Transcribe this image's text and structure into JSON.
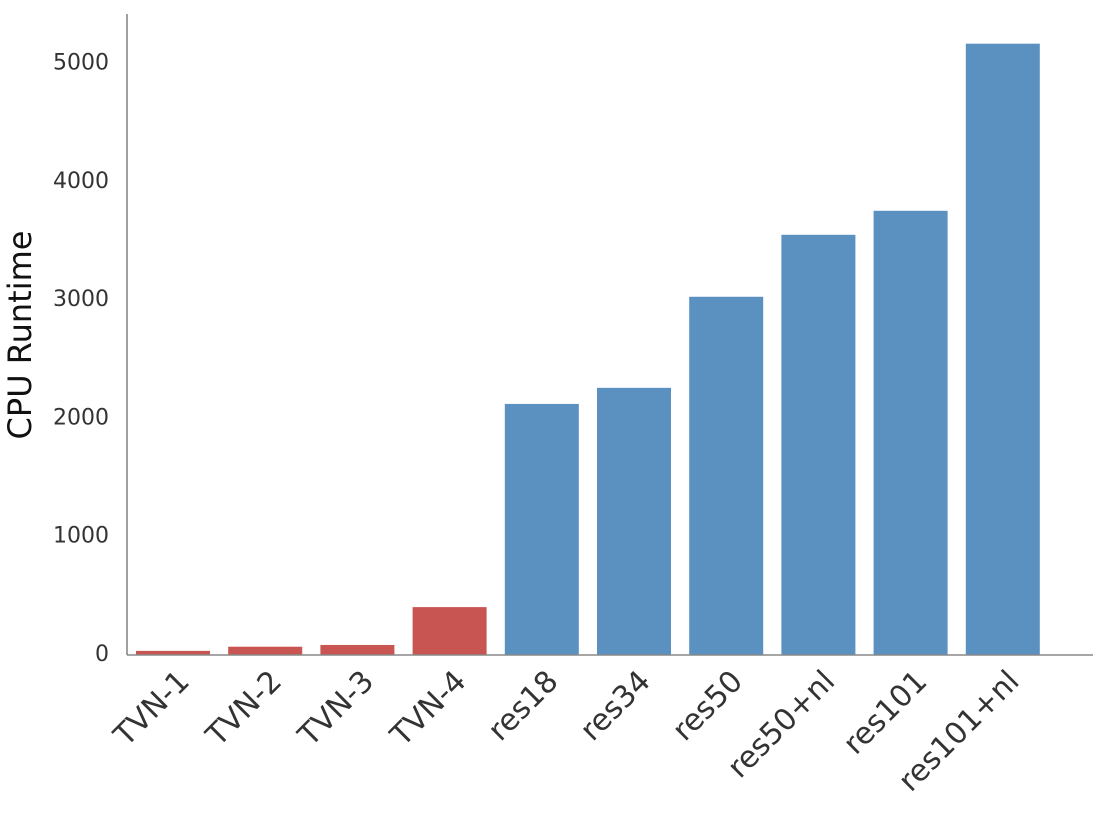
{
  "chart_data": {
    "type": "bar",
    "y_label": "CPU Runtime",
    "categories": [
      "TVN-1",
      "TVN-2",
      "TVN-3",
      "TVN-4",
      "res18",
      "res34",
      "res50",
      "res50+nl",
      "res101",
      "res101+nl"
    ],
    "values": [
      35,
      70,
      85,
      405,
      2123,
      2259,
      3029,
      3553,
      3756,
      5169
    ],
    "colors": [
      "#c85552",
      "#c85552",
      "#c85552",
      "#c85552",
      "#5b91c1",
      "#5b91c1",
      "#5b91c1",
      "#5b91c1",
      "#5b91c1",
      "#5b91c1"
    ],
    "ylim": [
      0,
      5420
    ],
    "yticks": [
      0,
      1000,
      2000,
      3000,
      4000,
      5000
    ],
    "grid": false
  }
}
